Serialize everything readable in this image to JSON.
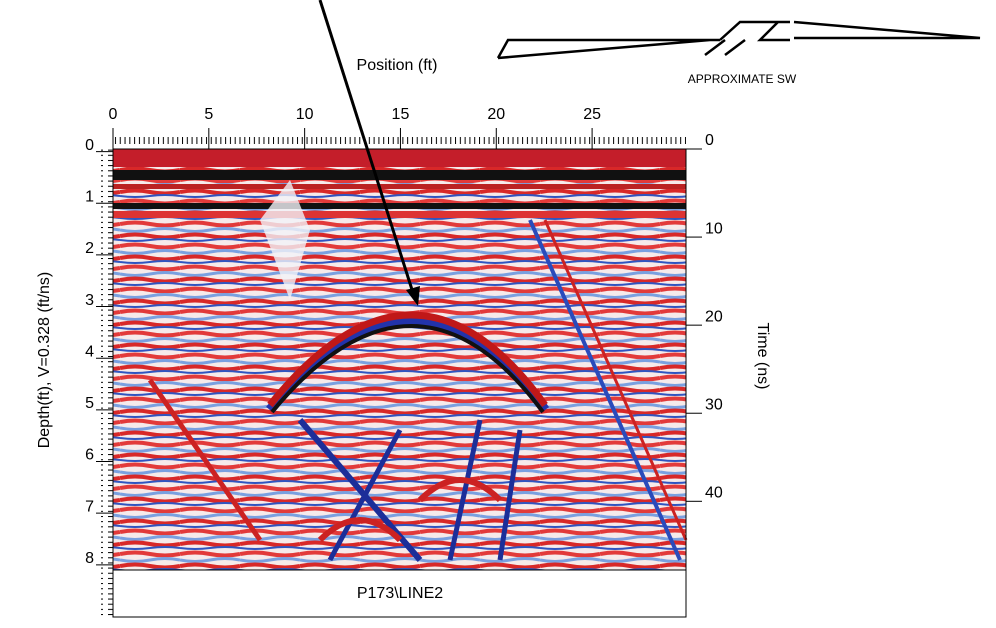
{
  "chart_data": {
    "type": "radargram",
    "x_label": "Position (ft)",
    "y_label": "Depth(ft), V=0.328 (ft/ns)",
    "y2_label": "Time (ns)",
    "line_name": "P173\\LINE2",
    "annotation": "APPROXIMATE SW",
    "xlim": [
      0,
      29.9
    ],
    "xticks": [
      0,
      5,
      10,
      15,
      20,
      25
    ],
    "ylim": [
      -0.05,
      8.1
    ],
    "yticks": [
      0,
      1,
      2,
      3,
      4,
      5,
      6,
      7,
      8
    ],
    "y2lim": [
      0,
      47.8
    ],
    "y2ticks": [
      0,
      10,
      20,
      30,
      40
    ]
  }
}
